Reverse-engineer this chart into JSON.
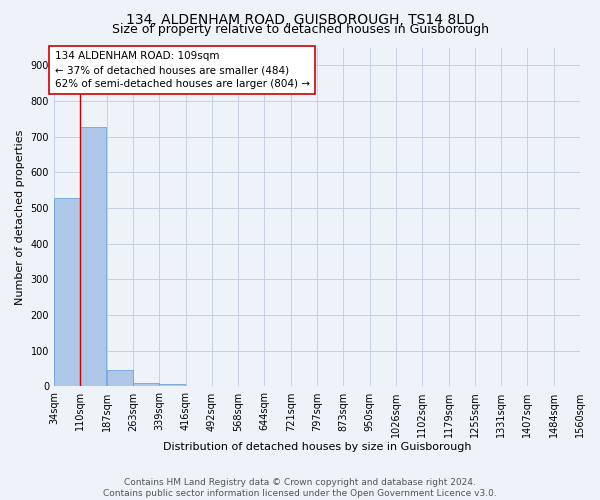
{
  "title_line1": "134, ALDENHAM ROAD, GUISBOROUGH, TS14 8LD",
  "title_line2": "Size of property relative to detached houses in Guisborough",
  "xlabel": "Distribution of detached houses by size in Guisborough",
  "ylabel": "Number of detached properties",
  "bar_color": "#aec6e8",
  "bar_edge_color": "#5b9bd5",
  "annotation_box_color": "#cc0000",
  "annotation_line1": "134 ALDENHAM ROAD: 109sqm",
  "annotation_line2": "← 37% of detached houses are smaller (484)",
  "annotation_line3": "62% of semi-detached houses are larger (804) →",
  "property_line_x": 110,
  "ylim": [
    0,
    950
  ],
  "yticks": [
    0,
    100,
    200,
    300,
    400,
    500,
    600,
    700,
    800,
    900
  ],
  "bin_edges": [
    34,
    110,
    187,
    263,
    339,
    416,
    492,
    568,
    644,
    721,
    797,
    873,
    950,
    1026,
    1102,
    1179,
    1255,
    1331,
    1407,
    1484,
    1560
  ],
  "bar_heights": [
    527,
    727,
    47,
    11,
    8,
    0,
    0,
    0,
    0,
    0,
    0,
    0,
    0,
    0,
    0,
    0,
    0,
    0,
    0,
    0
  ],
  "tick_labels": [
    "34sqm",
    "110sqm",
    "187sqm",
    "263sqm",
    "339sqm",
    "416sqm",
    "492sqm",
    "568sqm",
    "644sqm",
    "721sqm",
    "797sqm",
    "873sqm",
    "950sqm",
    "1026sqm",
    "1102sqm",
    "1179sqm",
    "1255sqm",
    "1331sqm",
    "1407sqm",
    "1484sqm",
    "1560sqm"
  ],
  "footer_text": "Contains HM Land Registry data © Crown copyright and database right 2024.\nContains public sector information licensed under the Open Government Licence v3.0.",
  "background_color": "#eef2f9",
  "plot_bg_color": "#eef2f9",
  "grid_color": "#c8d0e0",
  "title_fontsize": 10,
  "subtitle_fontsize": 9,
  "axis_label_fontsize": 8,
  "tick_fontsize": 7,
  "annotation_fontsize": 7.5,
  "footer_fontsize": 6.5
}
